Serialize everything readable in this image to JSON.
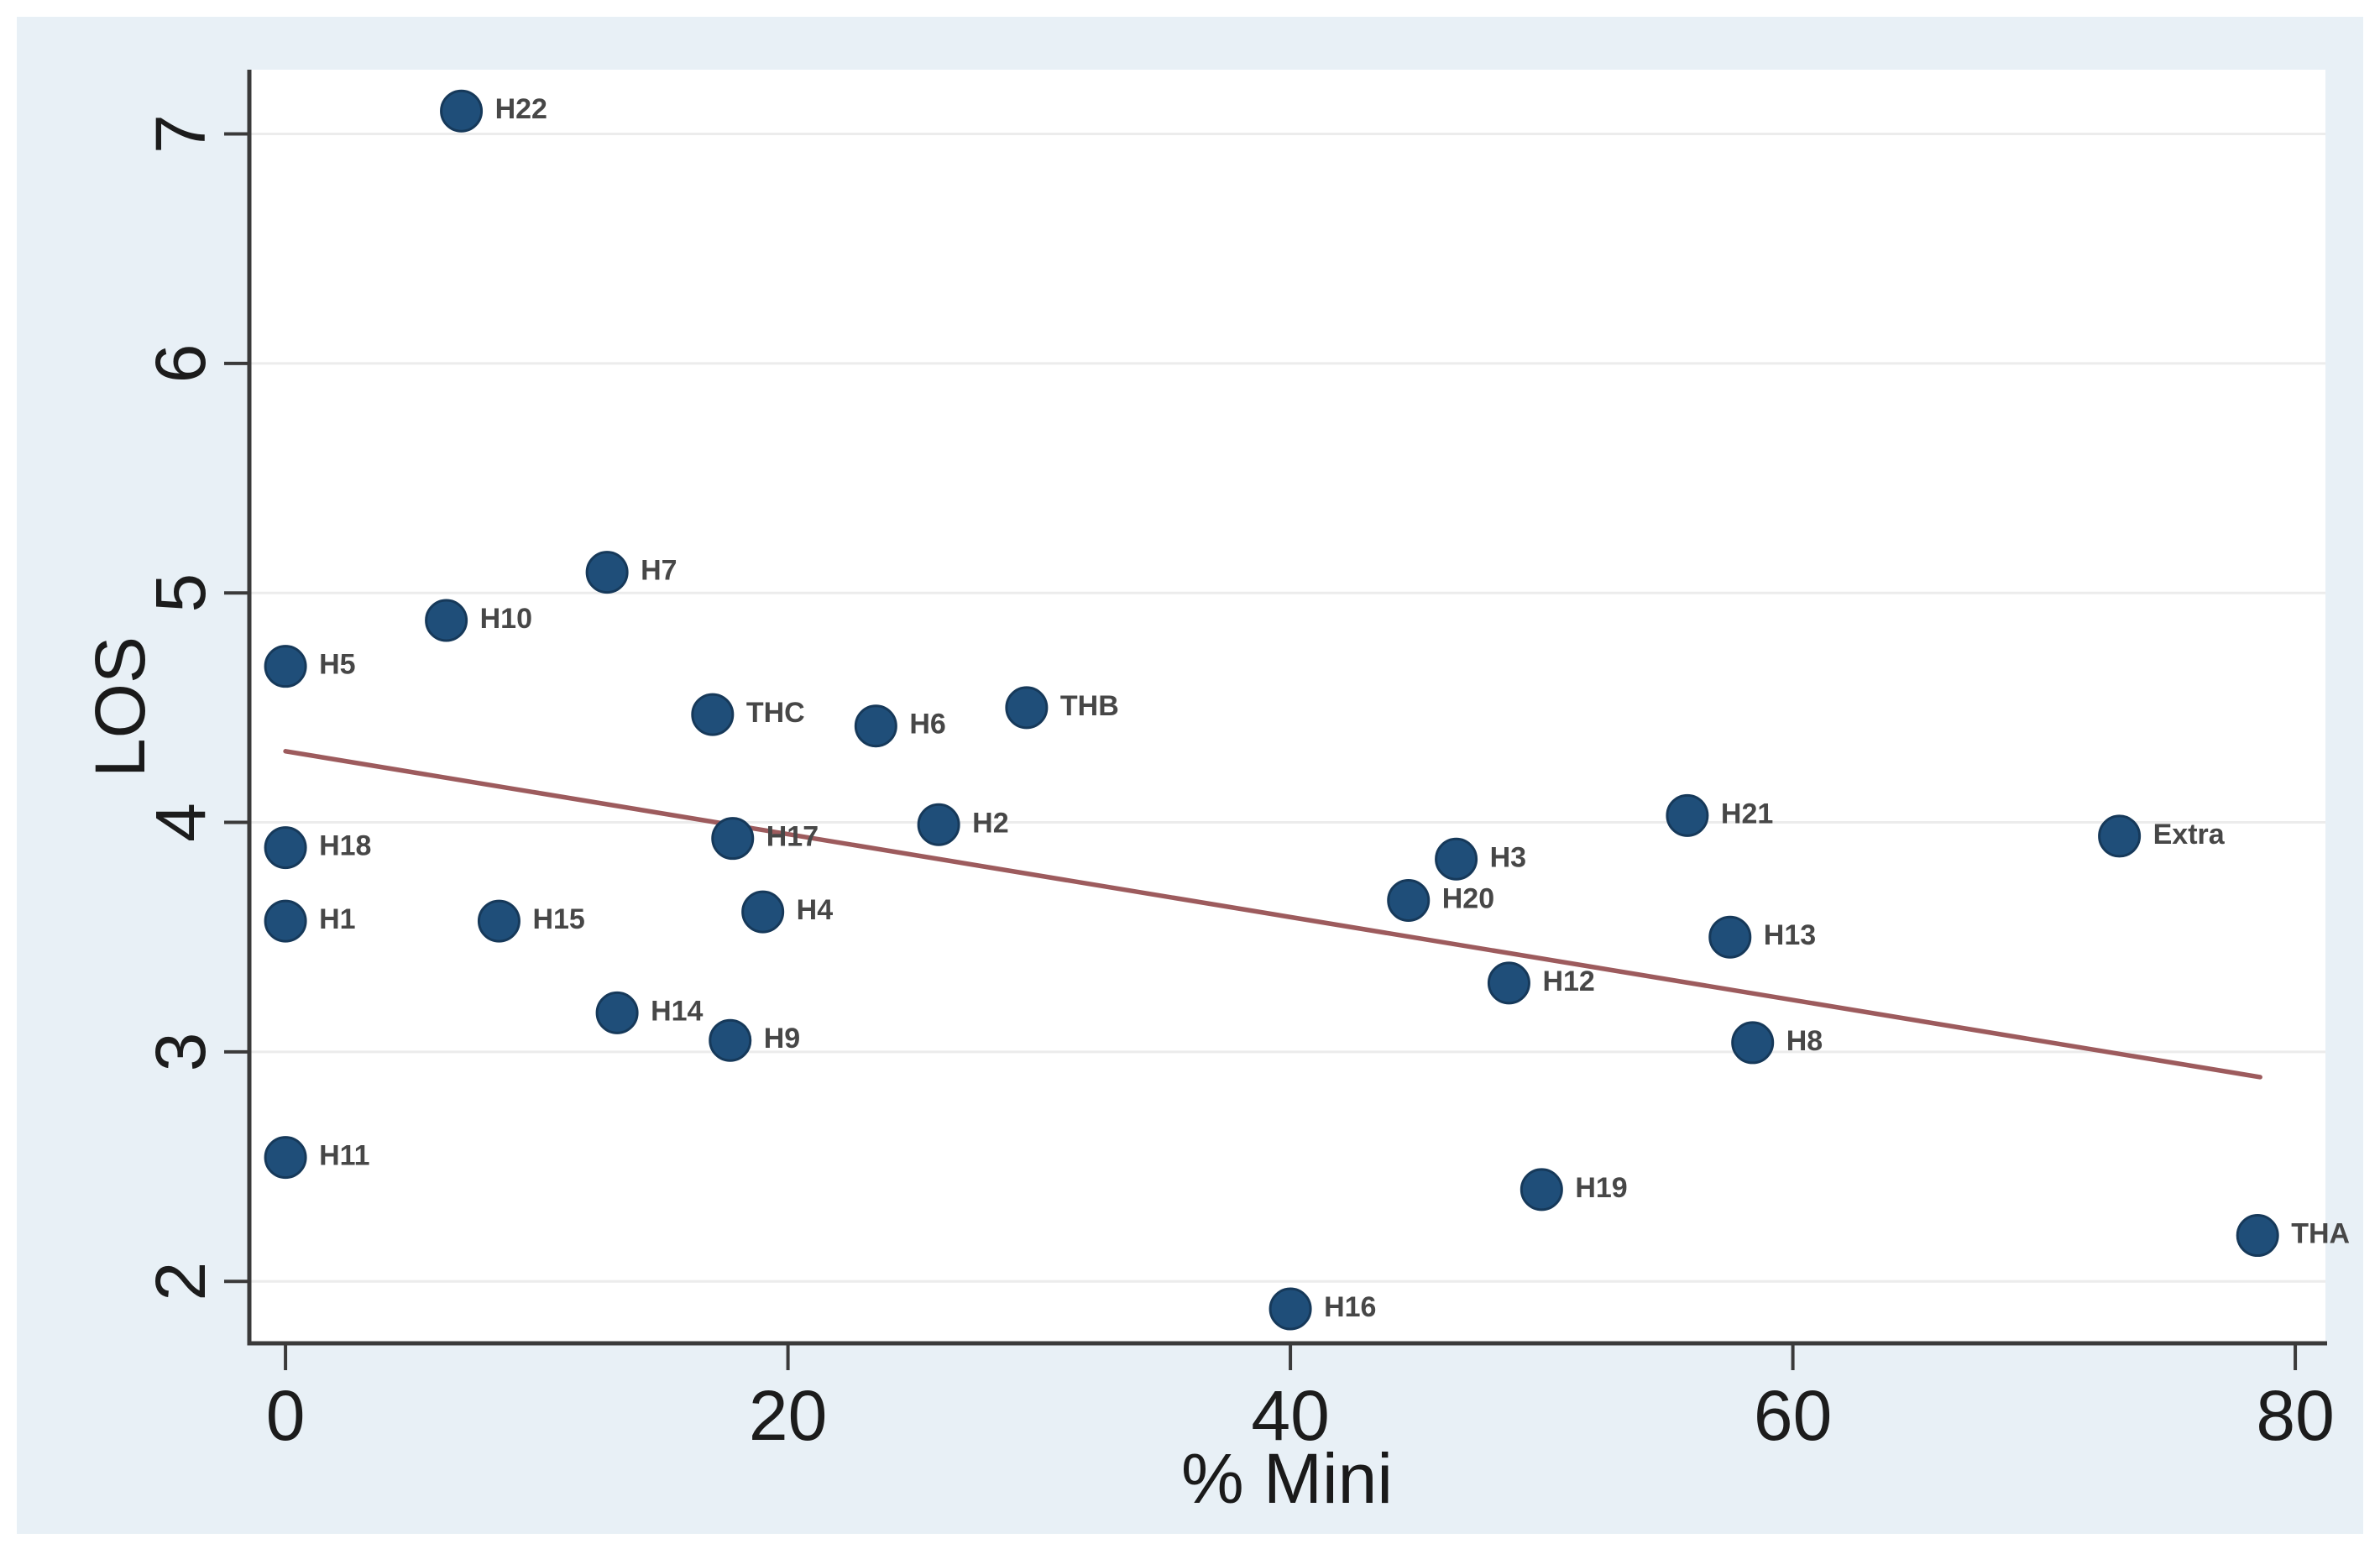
{
  "figure": {
    "kind": "stata-style scatter plot with fitted line",
    "colors": {
      "canvas_background": "#e8f0f6",
      "plot_background": "#ffffff",
      "gridline": "#ececec",
      "axis_line": "#3a3a3a",
      "tick": "#3a3a3a",
      "tick_label": "#1c1c1c",
      "axis_title": "#1a1a1a",
      "marker_fill": "#1f4e79",
      "marker_edge": "#16395a",
      "marker_label": "#474747",
      "trend_line": "#9d5b5d"
    }
  },
  "chart_data": {
    "type": "scatter",
    "title": "",
    "xlabel": "% Mini",
    "ylabel": "LOS",
    "x_ticks": [
      0,
      20,
      40,
      60,
      80
    ],
    "y_ticks": [
      2,
      3,
      4,
      5,
      6,
      7
    ],
    "xlim": [
      -1.44,
      81.2
    ],
    "ylim": [
      1.73,
      7.28
    ],
    "grid": "horizontal-only",
    "legend": "none",
    "points": [
      {
        "label": "H1",
        "x": 0,
        "y": 3.57
      },
      {
        "label": "H2",
        "x": 26,
        "y": 3.99
      },
      {
        "label": "H3",
        "x": 46.6,
        "y": 3.84
      },
      {
        "label": "H4",
        "x": 19,
        "y": 3.61
      },
      {
        "label": "H5",
        "x": 0,
        "y": 4.68
      },
      {
        "label": "H6",
        "x": 23.5,
        "y": 4.42
      },
      {
        "label": "H7",
        "x": 12.8,
        "y": 5.09
      },
      {
        "label": "H8",
        "x": 58.4,
        "y": 3.04
      },
      {
        "label": "H9",
        "x": 17.7,
        "y": 3.05
      },
      {
        "label": "H10",
        "x": 6.4,
        "y": 4.88
      },
      {
        "label": "H11",
        "x": 0,
        "y": 2.54
      },
      {
        "label": "H12",
        "x": 48.7,
        "y": 3.3
      },
      {
        "label": "H13",
        "x": 57.5,
        "y": 3.5
      },
      {
        "label": "H14",
        "x": 13.2,
        "y": 3.17
      },
      {
        "label": "H15",
        "x": 8.5,
        "y": 3.57
      },
      {
        "label": "H16",
        "x": 40,
        "y": 1.88
      },
      {
        "label": "H17",
        "x": 17.8,
        "y": 3.93
      },
      {
        "label": "H18",
        "x": 0,
        "y": 3.89
      },
      {
        "label": "H19",
        "x": 50,
        "y": 2.4
      },
      {
        "label": "H20",
        "x": 44.7,
        "y": 3.66
      },
      {
        "label": "H21",
        "x": 55.8,
        "y": 4.03
      },
      {
        "label": "H22",
        "x": 7,
        "y": 7.1
      },
      {
        "label": "THA",
        "x": 78.5,
        "y": 2.2
      },
      {
        "label": "THB",
        "x": 29.5,
        "y": 4.5
      },
      {
        "label": "THC",
        "x": 17,
        "y": 4.47
      },
      {
        "label": "Extra",
        "x": 73,
        "y": 3.94
      }
    ],
    "trend_line": {
      "x1": 0,
      "y1": 4.31,
      "x2": 78.6,
      "y2": 2.89
    }
  }
}
